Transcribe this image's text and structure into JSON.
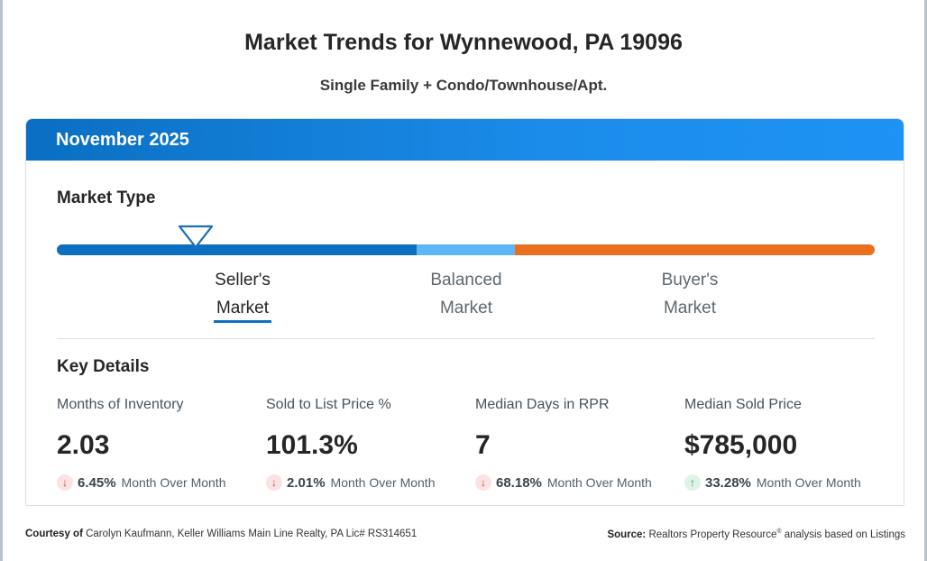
{
  "header": {
    "title": "Market Trends for Wynnewood, PA 19096",
    "subtitle": "Single Family + Condo/Townhouse/Apt."
  },
  "card": {
    "period": "November 2025",
    "market_type": {
      "title": "Market Type",
      "indicator_level": 0.17,
      "segments": [
        {
          "name": "seller",
          "color": "#0d6fc0",
          "fraction": 0.44
        },
        {
          "name": "balanced",
          "color": "#5eb6f5",
          "fraction": 0.12
        },
        {
          "name": "buyer",
          "color": "#e8701f",
          "fraction": 0.44
        }
      ],
      "labels": [
        {
          "line1": "Seller's",
          "line2": "Market",
          "active": true
        },
        {
          "line1": "Balanced",
          "line2": "Market",
          "active": false
        },
        {
          "line1": "Buyer's",
          "line2": "Market",
          "active": false
        }
      ]
    },
    "key_details": {
      "title": "Key Details",
      "stats": [
        {
          "label": "Months of Inventory",
          "value": "2.03",
          "direction": "down",
          "change": "6.45%",
          "period": "Month Over Month"
        },
        {
          "label": "Sold to List Price %",
          "value": "101.3%",
          "direction": "down",
          "change": "2.01%",
          "period": "Month Over Month"
        },
        {
          "label": "Median Days in RPR",
          "value": "7",
          "direction": "down",
          "change": "68.18%",
          "period": "Month Over Month"
        },
        {
          "label": "Median Sold Price",
          "value": "$785,000",
          "direction": "up",
          "change": "33.28%",
          "period": "Month Over Month"
        }
      ]
    }
  },
  "footer": {
    "courtesy_label": "Courtesy of",
    "courtesy_text": "Carolyn Kaufmann, Keller Williams Main Line Realty, PA Lic# RS314651",
    "source_label": "Source:",
    "source_text_1": "Realtors Property Resource",
    "source_sup": "®",
    "source_text_2": " analysis based on Listings"
  },
  "icons": {
    "down_arrow": "arrow-down-icon",
    "up_arrow": "arrow-up-icon",
    "marker": "triangle-marker-icon"
  }
}
